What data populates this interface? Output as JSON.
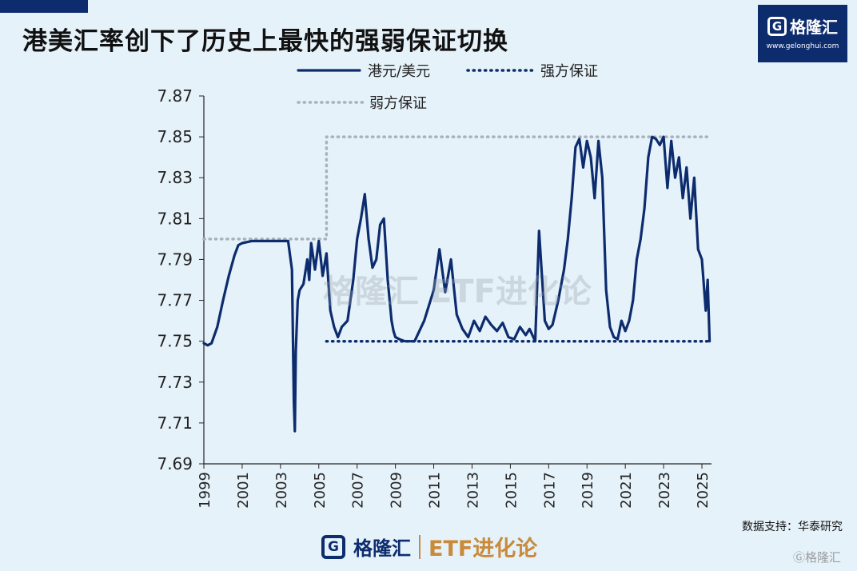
{
  "header": {
    "title": "港美汇率创下了历史上最快的强弱保证切换"
  },
  "brand": {
    "name": "格隆汇",
    "url": "www.gelonghui.com",
    "etf_label": "ETF进化论"
  },
  "footer": {
    "source": "数据支持：华泰研究"
  },
  "colors": {
    "line": "#0d2c6e",
    "weak": "#a9b2bc",
    "background": "#e6f2fa",
    "accent": "#c98a3a"
  },
  "chart_data": {
    "type": "line",
    "title": "港美汇率创下了历史上最快的强弱保证切换",
    "xlabel": "",
    "ylabel": "",
    "xlim": [
      1999,
      2025.5
    ],
    "ylim": [
      7.69,
      7.87
    ],
    "yticks": [
      "7.87",
      "7.85",
      "7.83",
      "7.81",
      "7.79",
      "7.77",
      "7.75",
      "7.73",
      "7.71",
      "7.69"
    ],
    "xticks": [
      "1999",
      "2001",
      "2003",
      "2005",
      "2007",
      "2009",
      "2011",
      "2013",
      "2015",
      "2017",
      "2019",
      "2021",
      "2023",
      "2025"
    ],
    "legend": [
      "港元/美元",
      "强方保证",
      "弱方保证"
    ],
    "legend_position": "top",
    "series": [
      {
        "name": "港元/美元",
        "style": "solid",
        "x": [
          1999.0,
          1999.2,
          1999.4,
          1999.7,
          2000.0,
          2000.3,
          2000.6,
          2000.8,
          2001.0,
          2001.5,
          2002.0,
          2002.5,
          2003.0,
          2003.4,
          2003.6,
          2003.7,
          2003.75,
          2003.8,
          2003.9,
          2004.0,
          2004.2,
          2004.4,
          2004.5,
          2004.6,
          2004.8,
          2005.0,
          2005.2,
          2005.4,
          2005.6,
          2005.8,
          2006.0,
          2006.2,
          2006.5,
          2006.8,
          2007.0,
          2007.2,
          2007.4,
          2007.6,
          2007.8,
          2008.0,
          2008.2,
          2008.4,
          2008.6,
          2008.8,
          2008.9,
          2009.0,
          2009.2,
          2009.5,
          2010.0,
          2010.5,
          2011.0,
          2011.3,
          2011.6,
          2011.9,
          2012.2,
          2012.5,
          2012.8,
          2013.1,
          2013.4,
          2013.7,
          2014.0,
          2014.3,
          2014.6,
          2014.9,
          2015.2,
          2015.5,
          2015.8,
          2016.0,
          2016.3,
          2016.5,
          2016.8,
          2017.0,
          2017.2,
          2017.5,
          2017.8,
          2018.0,
          2018.2,
          2018.4,
          2018.6,
          2018.8,
          2019.0,
          2019.2,
          2019.4,
          2019.6,
          2019.8,
          2020.0,
          2020.2,
          2020.4,
          2020.6,
          2020.8,
          2021.0,
          2021.2,
          2021.4,
          2021.6,
          2021.8,
          2022.0,
          2022.2,
          2022.4,
          2022.6,
          2022.8,
          2023.0,
          2023.2,
          2023.4,
          2023.6,
          2023.8,
          2024.0,
          2024.2,
          2024.4,
          2024.6,
          2024.8,
          2025.0,
          2025.2,
          2025.3,
          2025.4
        ],
        "y": [
          7.749,
          7.748,
          7.749,
          7.757,
          7.77,
          7.782,
          7.792,
          7.797,
          7.798,
          7.799,
          7.799,
          7.799,
          7.799,
          7.799,
          7.785,
          7.72,
          7.706,
          7.745,
          7.77,
          7.775,
          7.778,
          7.79,
          7.78,
          7.798,
          7.785,
          7.799,
          7.782,
          7.793,
          7.765,
          7.757,
          7.752,
          7.757,
          7.76,
          7.78,
          7.8,
          7.81,
          7.822,
          7.8,
          7.786,
          7.79,
          7.807,
          7.81,
          7.78,
          7.76,
          7.755,
          7.752,
          7.751,
          7.75,
          7.75,
          7.76,
          7.775,
          7.795,
          7.774,
          7.79,
          7.763,
          7.756,
          7.752,
          7.76,
          7.755,
          7.762,
          7.758,
          7.755,
          7.759,
          7.752,
          7.751,
          7.757,
          7.753,
          7.756,
          7.75,
          7.804,
          7.76,
          7.756,
          7.758,
          7.77,
          7.785,
          7.8,
          7.82,
          7.845,
          7.849,
          7.835,
          7.848,
          7.84,
          7.82,
          7.848,
          7.83,
          7.775,
          7.757,
          7.752,
          7.751,
          7.76,
          7.755,
          7.76,
          7.77,
          7.79,
          7.8,
          7.815,
          7.84,
          7.85,
          7.849,
          7.846,
          7.85,
          7.825,
          7.848,
          7.83,
          7.84,
          7.82,
          7.835,
          7.81,
          7.83,
          7.795,
          7.79,
          7.765,
          7.78,
          7.75
        ]
      },
      {
        "name": "强方保证",
        "style": "dotted",
        "x": [
          2005.4,
          2025.5
        ],
        "y": [
          7.75,
          7.75
        ]
      },
      {
        "name": "弱方保证",
        "style": "dotted",
        "x": [
          1999.0,
          2005.4,
          2005.4,
          2025.5
        ],
        "y": [
          7.8,
          7.8,
          7.85,
          7.85
        ]
      }
    ]
  }
}
